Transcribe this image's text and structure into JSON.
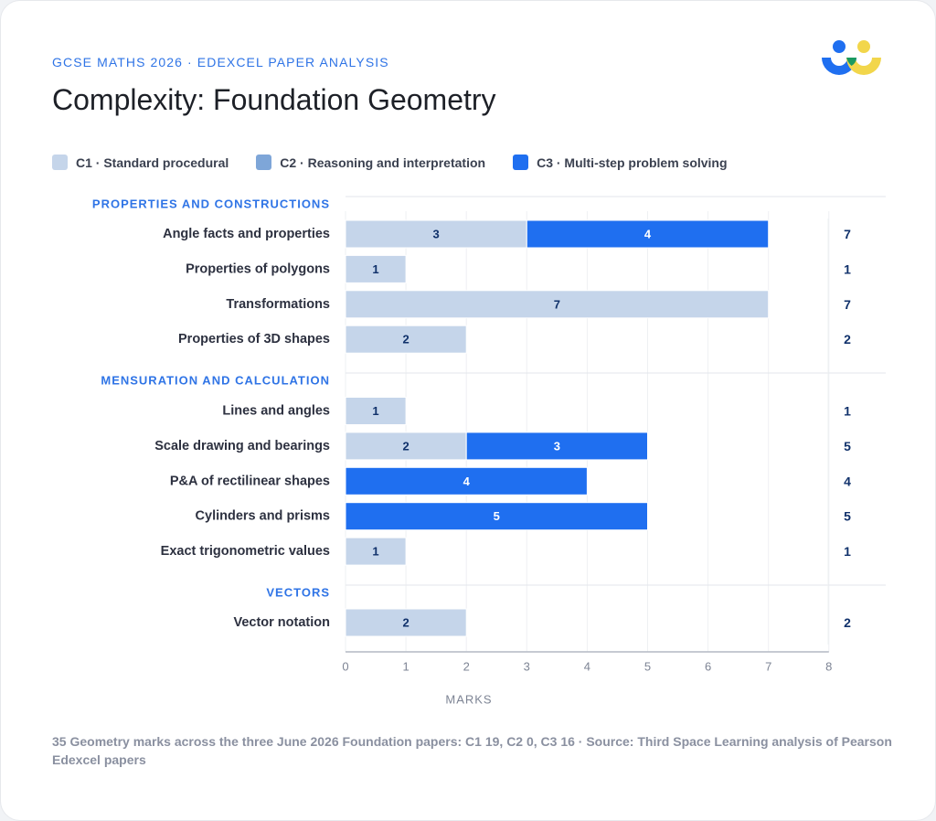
{
  "header": {
    "eyebrow": "GCSE MATHS 2026 · EDEXCEL PAPER ANALYSIS",
    "title": "Complexity: Foundation Geometry"
  },
  "legend": [
    {
      "label": "C1 · Standard procedural",
      "color": "#c5d5ea"
    },
    {
      "label": "C2 · Reasoning and interpretation",
      "color": "#7ea6d8"
    },
    {
      "label": "C3 · Multi-step problem solving",
      "color": "#1f6ff0"
    }
  ],
  "footnote": "35 Geometry marks across the three June 2026 Foundation papers: C1 19, C2 0, C3 16 · Source: Third Space Learning analysis of Pearson Edexcel papers",
  "logo_icon": "third-space-learning-logo",
  "chart_data": {
    "type": "bar",
    "orientation": "horizontal",
    "stacked": true,
    "xlabel": "MARKS",
    "xlim": [
      0,
      8
    ],
    "xticks": [
      0,
      1,
      2,
      3,
      4,
      5,
      6,
      7,
      8
    ],
    "grid": true,
    "legend_position": "top",
    "series": [
      {
        "name": "C1 · Standard procedural",
        "color": "#c5d5ea"
      },
      {
        "name": "C2 · Reasoning and interpretation",
        "color": "#7ea6d8"
      },
      {
        "name": "C3 · Multi-step problem solving",
        "color": "#1f6ff0"
      }
    ],
    "groups": [
      {
        "name": "PROPERTIES AND CONSTRUCTIONS",
        "rows": [
          {
            "label": "Angle facts and properties",
            "values": [
              3,
              0,
              4
            ],
            "total": 7
          },
          {
            "label": "Properties of polygons",
            "values": [
              1,
              0,
              0
            ],
            "total": 1
          },
          {
            "label": "Transformations",
            "values": [
              7,
              0,
              0
            ],
            "total": 7
          },
          {
            "label": "Properties of 3D shapes",
            "values": [
              2,
              0,
              0
            ],
            "total": 2
          }
        ]
      },
      {
        "name": "MENSURATION AND CALCULATION",
        "rows": [
          {
            "label": "Lines and angles",
            "values": [
              1,
              0,
              0
            ],
            "total": 1
          },
          {
            "label": "Scale drawing and bearings",
            "values": [
              2,
              0,
              3
            ],
            "total": 5
          },
          {
            "label": "P&A of rectilinear shapes",
            "values": [
              0,
              0,
              4
            ],
            "total": 4
          },
          {
            "label": "Cylinders and prisms",
            "values": [
              0,
              0,
              5
            ],
            "total": 5
          },
          {
            "label": "Exact trigonometric values",
            "values": [
              1,
              0,
              0
            ],
            "total": 1
          }
        ]
      },
      {
        "name": "VECTORS",
        "rows": [
          {
            "label": "Vector notation",
            "values": [
              2,
              0,
              0
            ],
            "total": 2
          }
        ]
      }
    ]
  }
}
